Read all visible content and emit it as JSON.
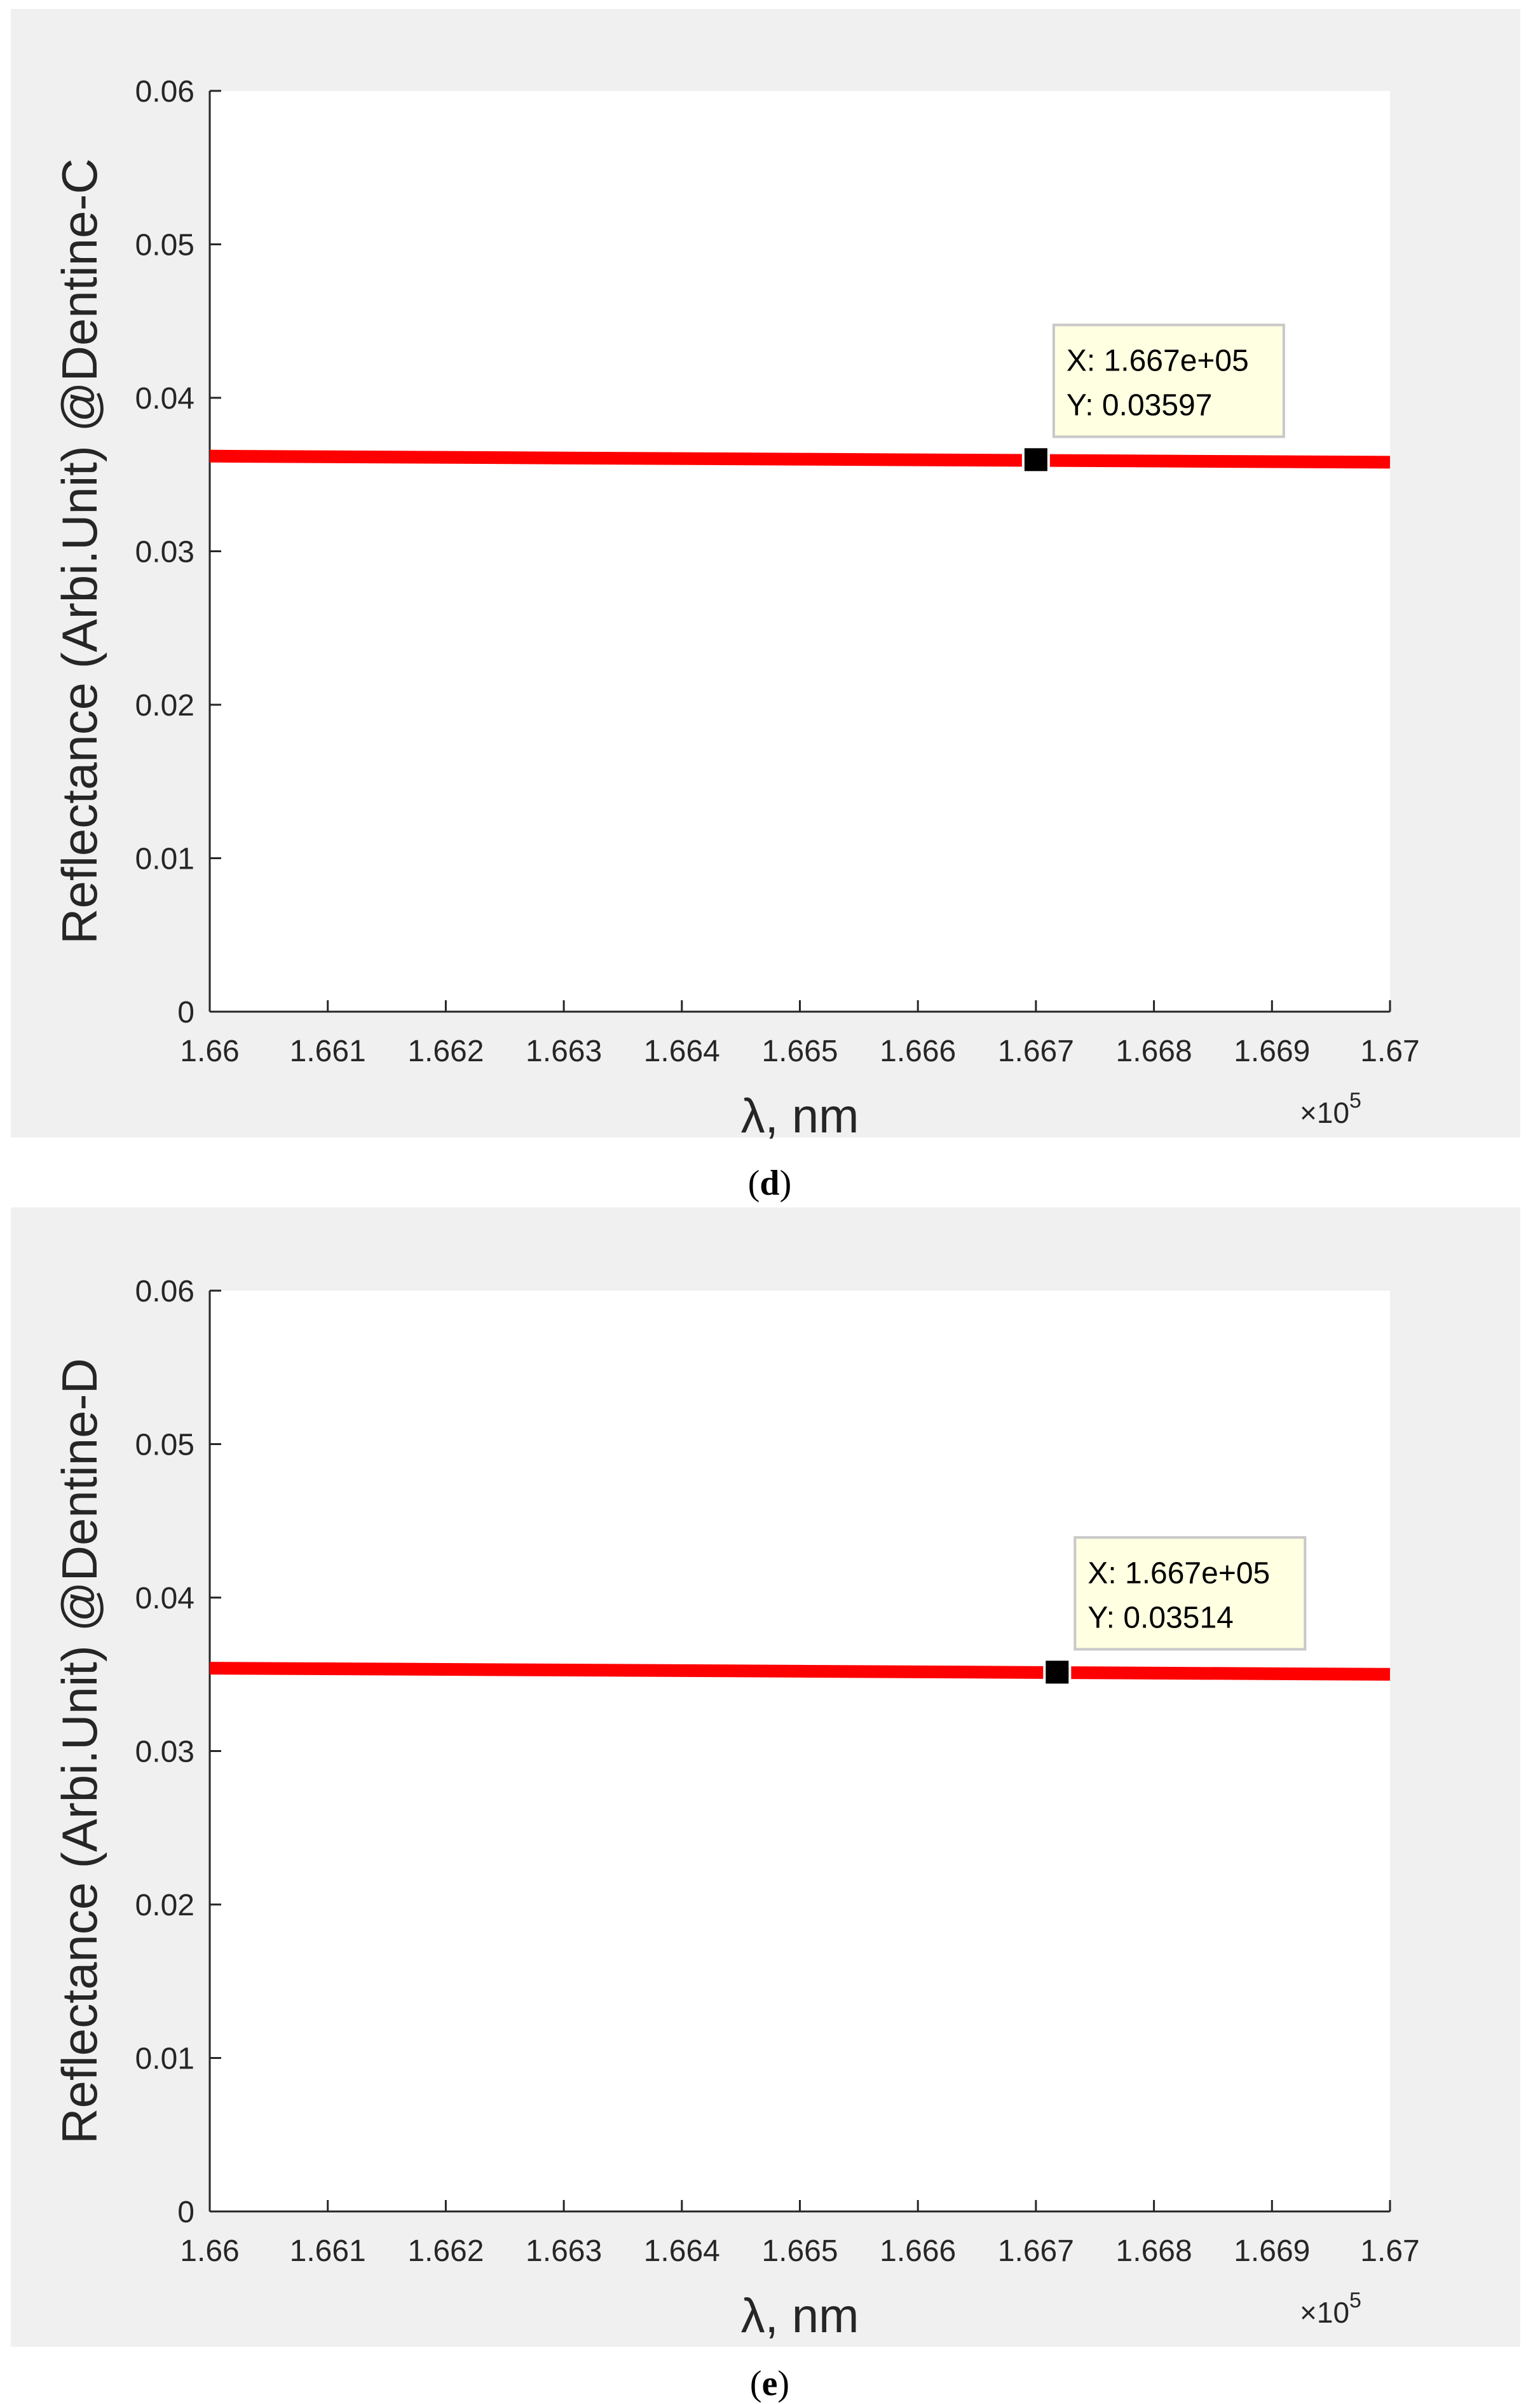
{
  "chart_data": [
    {
      "type": "line",
      "panel_label": "d",
      "xlabel": "λ, nm",
      "ylabel": "Reflectance (Arbi.Unit) @Dentine-C",
      "x_exponent_label": "×10",
      "x_exponent_power": "5",
      "xlim": [
        166000,
        167000
      ],
      "ylim": [
        0,
        0.06
      ],
      "x_ticks": [
        166000,
        166100,
        166200,
        166300,
        166400,
        166500,
        166600,
        166700,
        166800,
        166900,
        167000
      ],
      "x_tick_labels": [
        "1.66",
        "1.661",
        "1.662",
        "1.663",
        "1.664",
        "1.665",
        "1.666",
        "1.667",
        "1.668",
        "1.669",
        "1.67"
      ],
      "y_ticks": [
        0,
        0.01,
        0.02,
        0.03,
        0.04,
        0.05,
        0.06
      ],
      "y_tick_labels": [
        "0",
        "0.01",
        "0.02",
        "0.03",
        "0.04",
        "0.05",
        "0.06"
      ],
      "grid": false,
      "line_color": "#ff0000",
      "series": [
        {
          "x": [
            166000,
            166500,
            167000
          ],
          "y": [
            0.0362,
            0.036,
            0.0358
          ]
        }
      ],
      "datatip": {
        "x": 166700,
        "y": 0.03597,
        "x_text": "X: 1.667e+05",
        "y_text": "Y: 0.03597"
      }
    },
    {
      "type": "line",
      "panel_label": "e",
      "xlabel": "λ, nm",
      "ylabel": "Reflectance (Arbi.Unit) @Dentine-D",
      "x_exponent_label": "×10",
      "x_exponent_power": "5",
      "xlim": [
        166000,
        167000
      ],
      "ylim": [
        0,
        0.06
      ],
      "x_ticks": [
        166000,
        166100,
        166200,
        166300,
        166400,
        166500,
        166600,
        166700,
        166800,
        166900,
        167000
      ],
      "x_tick_labels": [
        "1.66",
        "1.661",
        "1.662",
        "1.663",
        "1.664",
        "1.665",
        "1.666",
        "1.667",
        "1.668",
        "1.669",
        "1.67"
      ],
      "y_ticks": [
        0,
        0.01,
        0.02,
        0.03,
        0.04,
        0.05,
        0.06
      ],
      "y_tick_labels": [
        "0",
        "0.01",
        "0.02",
        "0.03",
        "0.04",
        "0.05",
        "0.06"
      ],
      "grid": false,
      "line_color": "#ff0000",
      "series": [
        {
          "x": [
            166000,
            166500,
            167000
          ],
          "y": [
            0.0354,
            0.0352,
            0.035
          ]
        }
      ],
      "datatip": {
        "x": 166718,
        "y": 0.03514,
        "x_text": "X: 1.667e+05",
        "y_text": "Y: 0.03514"
      }
    }
  ]
}
